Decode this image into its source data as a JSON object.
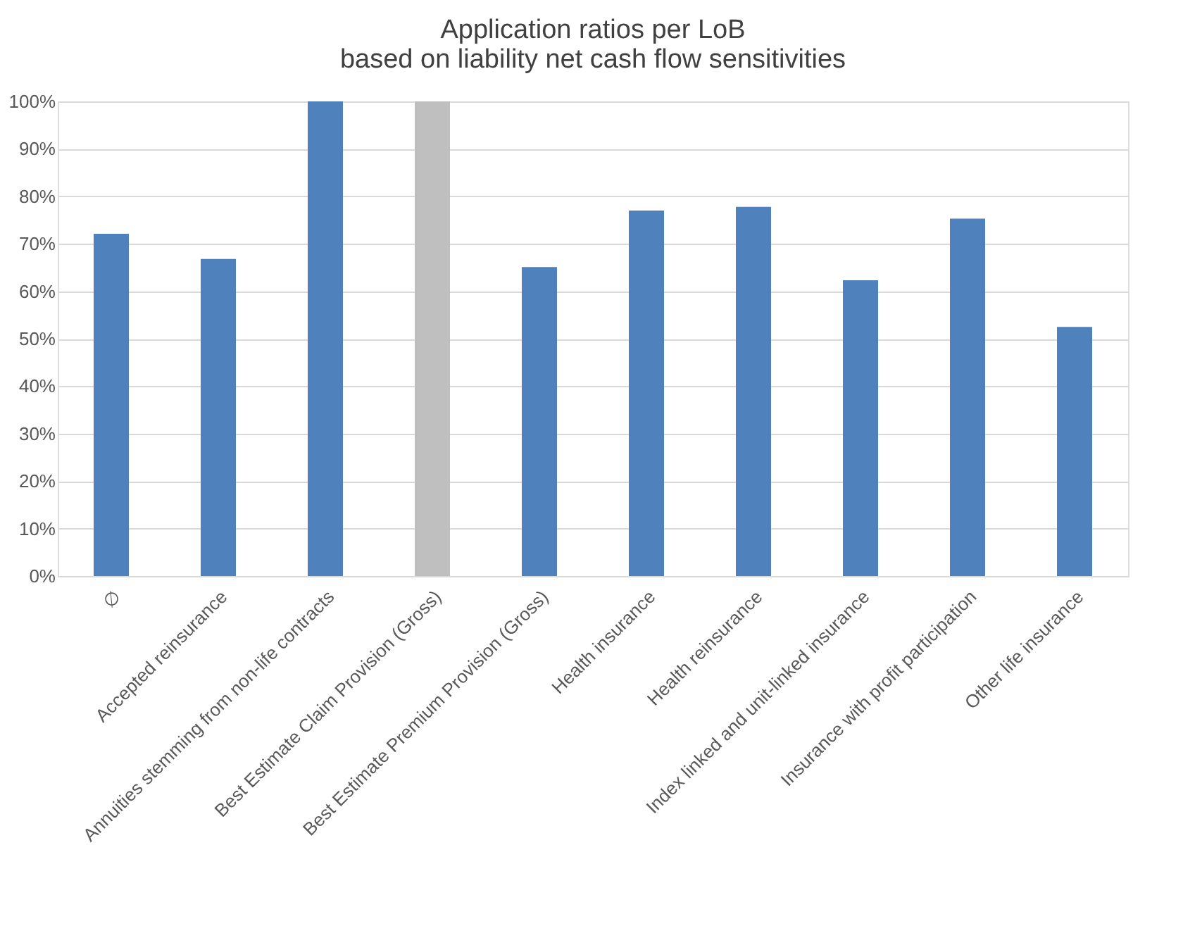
{
  "chart_data": {
    "type": "bar",
    "title": [
      "Application ratios per LoB",
      "based on liability net cash flow sensitivities"
    ],
    "categories": [
      "∅",
      "Accepted reinsurance",
      "Annuities stemming from non-life contracts",
      "Best Estimate Claim Provision (Gross)",
      "Best Estimate Premium Provision (Gross)",
      "Health insurance",
      "Health reinsurance",
      "Index linked and unit-linked insurance",
      "Insurance with profit participation",
      "Other life insurance"
    ],
    "values": [
      72.1,
      66.8,
      100,
      100,
      65.1,
      77.0,
      77.8,
      62.3,
      75.3,
      52.5
    ],
    "colors": [
      "#4f81bd",
      "#4f81bd",
      "#4f81bd",
      "#bfbfbf",
      "#4f81bd",
      "#4f81bd",
      "#4f81bd",
      "#4f81bd",
      "#4f81bd",
      "#4f81bd"
    ],
    "ylim": [
      0,
      100
    ],
    "yticks": [
      {
        "value": 0,
        "label": "0%"
      },
      {
        "value": 10,
        "label": "10%"
      },
      {
        "value": 20,
        "label": "20%"
      },
      {
        "value": 30,
        "label": "30%"
      },
      {
        "value": 40,
        "label": "40%"
      },
      {
        "value": 50,
        "label": "50%"
      },
      {
        "value": 60,
        "label": "60%"
      },
      {
        "value": 70,
        "label": "70%"
      },
      {
        "value": 80,
        "label": "80%"
      },
      {
        "value": 90,
        "label": "90%"
      },
      {
        "value": 100,
        "label": "100%"
      }
    ],
    "grid": "y"
  }
}
